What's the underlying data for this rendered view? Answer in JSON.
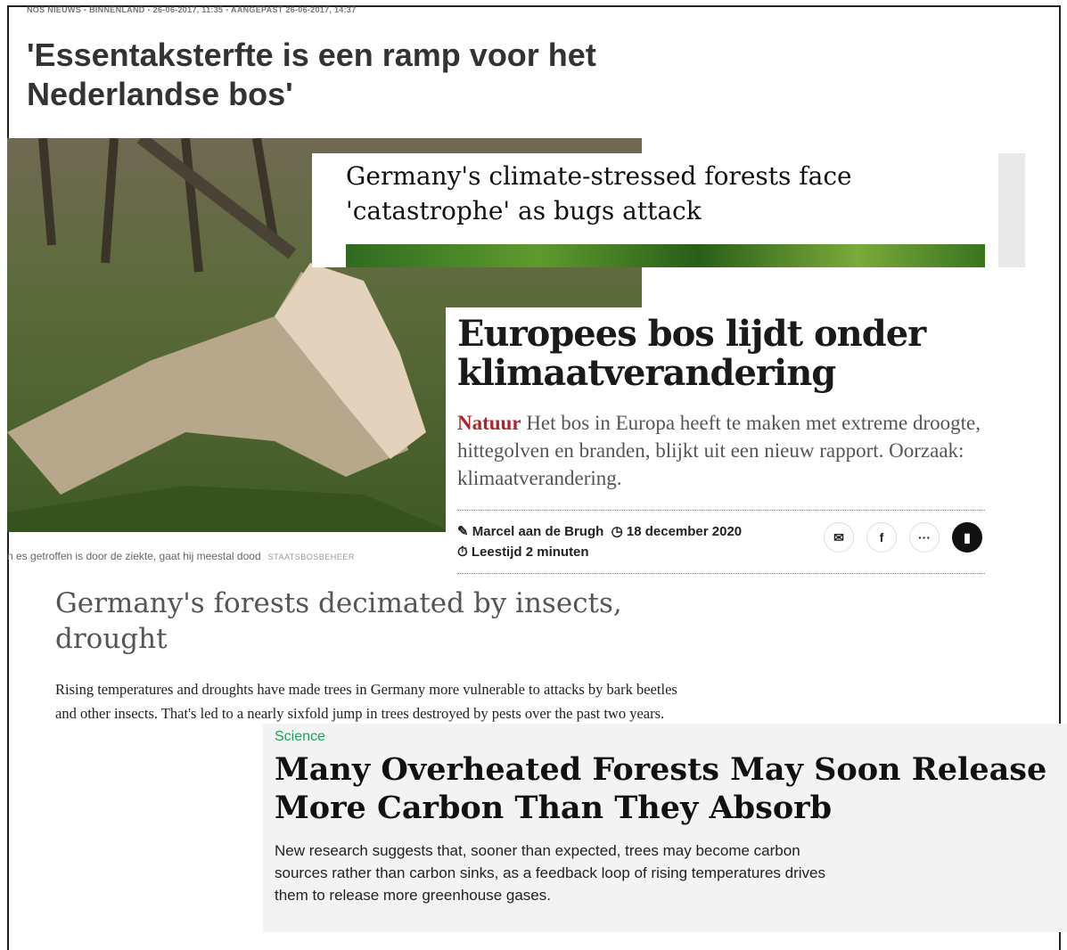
{
  "nos": {
    "meta": [
      "NOS NIEUWS",
      "BINNENLAND",
      "26-06-2017, 11:35",
      "AANGEPAST 26-06-2017, 14:37"
    ],
    "title": "'Essentaksterfte is een ramp voor het Nederlandse bos'",
    "caption": "n es getroffen is door de ziekte, gaat hij meestal dood",
    "credit": "STAATSBOSBEHEER"
  },
  "guardian": {
    "title": "Germany's climate-stressed forests face 'catastrophe' as bugs attack"
  },
  "nrc": {
    "title": "Europees bos lijdt onder klimaatverandering",
    "section": "Natuur",
    "summary": "Het bos in Europa heeft te maken met extreme droogte, hittegolven en branden, blijkt uit een nieuw rapport. Oorzaak: klimaatverandering.",
    "author": "Marcel aan de Brugh",
    "date": "18 december 2020",
    "reading_time": "Leestijd 2 minuten"
  },
  "dw": {
    "title": "Germany's forests decimated by insects, drought",
    "summary": "Rising temperatures and droughts have made trees in Germany more vulnerable to attacks by bark beetles and other insects. That's led to a nearly sixfold jump in trees destroyed by pests over the past two years."
  },
  "wired": {
    "section": "Science",
    "title": "Many Overheated Forests May Soon Release More Carbon Than They Absorb",
    "summary": "New research suggests that, sooner than expected, trees may become carbon sources rather than carbon sinks, as a feedback loop of rising temperatures drives them to release more greenhouse gases."
  }
}
